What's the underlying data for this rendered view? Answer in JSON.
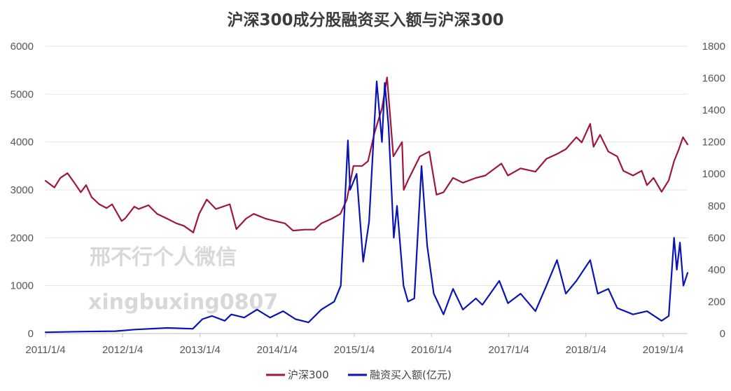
{
  "watermark": {
    "line1": "邢不行个人微信",
    "line2": "xingbuxing0807"
  },
  "chart_data": {
    "type": "line",
    "title": "沪深300成分股融资买入额与沪深300",
    "x_ticks": [
      "2011/1/4",
      "2012/1/4",
      "2013/1/4",
      "2014/1/4",
      "2015/1/4",
      "2016/1/4",
      "2017/1/4",
      "2018/1/4",
      "2019/1/4"
    ],
    "x_range": [
      "2011/1/4",
      "2019/4/30"
    ],
    "y_left": {
      "ylim": [
        0,
        6000
      ],
      "ticks": [
        0,
        1000,
        2000,
        3000,
        4000,
        5000,
        6000
      ]
    },
    "y_right": {
      "ylim": [
        0,
        1800
      ],
      "ticks": [
        0,
        200,
        400,
        600,
        800,
        1000,
        1200,
        1400,
        1600,
        1800
      ]
    },
    "grid": "horizontal",
    "legend_position": "bottom",
    "series": [
      {
        "name": "沪深300",
        "axis": "left",
        "color": "#a0153e",
        "points": [
          [
            "2011/1/4",
            3190
          ],
          [
            "2011/2/15",
            3050
          ],
          [
            "2011/3/15",
            3250
          ],
          [
            "2011/4/18",
            3350
          ],
          [
            "2011/5/20",
            3150
          ],
          [
            "2011/6/20",
            2950
          ],
          [
            "2011/7/15",
            3100
          ],
          [
            "2011/8/10",
            2850
          ],
          [
            "2011/9/15",
            2700
          ],
          [
            "2011/10/20",
            2620
          ],
          [
            "2011/11/15",
            2700
          ],
          [
            "2011/12/30",
            2350
          ],
          [
            "2012/1/15",
            2400
          ],
          [
            "2012/2/28",
            2650
          ],
          [
            "2012/3/20",
            2600
          ],
          [
            "2012/5/5",
            2680
          ],
          [
            "2012/6/15",
            2500
          ],
          [
            "2012/8/1",
            2400
          ],
          [
            "2012/9/15",
            2300
          ],
          [
            "2012/10/20",
            2250
          ],
          [
            "2012/12/3",
            2110
          ],
          [
            "2012/12/31",
            2500
          ],
          [
            "2013/2/5",
            2800
          ],
          [
            "2013/3/20",
            2600
          ],
          [
            "2013/5/25",
            2700
          ],
          [
            "2013/6/25",
            2180
          ],
          [
            "2013/8/10",
            2400
          ],
          [
            "2013/9/15",
            2500
          ],
          [
            "2013/11/10",
            2400
          ],
          [
            "2013/12/25",
            2350
          ],
          [
            "2014/2/10",
            2300
          ],
          [
            "2014/3/20",
            2150
          ],
          [
            "2014/5/15",
            2170
          ],
          [
            "2014/6/30",
            2170
          ],
          [
            "2014/8/1",
            2300
          ],
          [
            "2014/9/20",
            2400
          ],
          [
            "2014/10/30",
            2500
          ],
          [
            "2014/11/30",
            2800
          ],
          [
            "2014/12/31",
            3500
          ],
          [
            "2015/2/10",
            3500
          ],
          [
            "2015/3/10",
            3600
          ],
          [
            "2015/4/10",
            4200
          ],
          [
            "2015/5/15",
            4700
          ],
          [
            "2015/6/8",
            5350
          ],
          [
            "2015/7/8",
            3700
          ],
          [
            "2015/8/18",
            4000
          ],
          [
            "2015/8/26",
            3000
          ],
          [
            "2015/9/15",
            3200
          ],
          [
            "2015/11/10",
            3700
          ],
          [
            "2015/12/25",
            3800
          ],
          [
            "2016/1/28",
            2900
          ],
          [
            "2016/3/1",
            2950
          ],
          [
            "2016/4/15",
            3250
          ],
          [
            "2016/6/1",
            3150
          ],
          [
            "2016/8/1",
            3250
          ],
          [
            "2016/9/15",
            3300
          ],
          [
            "2016/11/30",
            3550
          ],
          [
            "2016/12/31",
            3300
          ],
          [
            "2017/3/1",
            3450
          ],
          [
            "2017/5/10",
            3380
          ],
          [
            "2017/7/1",
            3650
          ],
          [
            "2017/8/20",
            3750
          ],
          [
            "2017/10/1",
            3850
          ],
          [
            "2017/11/20",
            4100
          ],
          [
            "2017/12/15",
            3990
          ],
          [
            "2018/1/24",
            4380
          ],
          [
            "2018/2/9",
            3900
          ],
          [
            "2018/3/12",
            4150
          ],
          [
            "2018/4/20",
            3800
          ],
          [
            "2018/6/1",
            3700
          ],
          [
            "2018/6/30",
            3400
          ],
          [
            "2018/8/15",
            3300
          ],
          [
            "2018/9/25",
            3400
          ],
          [
            "2018/10/20",
            3100
          ],
          [
            "2018/11/20",
            3250
          ],
          [
            "2018/12/28",
            2960
          ],
          [
            "2019/1/31",
            3200
          ],
          [
            "2019/2/25",
            3600
          ],
          [
            "2019/3/20",
            3850
          ],
          [
            "2019/4/8",
            4100
          ],
          [
            "2019/4/30",
            3950
          ]
        ]
      },
      {
        "name": "融资买入额(亿元)",
        "axis": "right",
        "color": "#0a14b4",
        "points": [
          [
            "2011/1/4",
            8
          ],
          [
            "2011/6/1",
            12
          ],
          [
            "2011/12/1",
            15
          ],
          [
            "2012/3/1",
            25
          ],
          [
            "2012/8/1",
            35
          ],
          [
            "2012/12/1",
            30
          ],
          [
            "2013/1/15",
            90
          ],
          [
            "2013/3/1",
            110
          ],
          [
            "2013/5/1",
            80
          ],
          [
            "2013/6/1",
            120
          ],
          [
            "2013/8/1",
            100
          ],
          [
            "2013/10/1",
            150
          ],
          [
            "2013/12/1",
            100
          ],
          [
            "2014/2/1",
            140
          ],
          [
            "2014/4/1",
            90
          ],
          [
            "2014/6/1",
            70
          ],
          [
            "2014/8/1",
            150
          ],
          [
            "2014/10/1",
            200
          ],
          [
            "2014/11/1",
            300
          ],
          [
            "2014/12/5",
            1210
          ],
          [
            "2014/12/15",
            900
          ],
          [
            "2015/1/15",
            1000
          ],
          [
            "2015/2/15",
            450
          ],
          [
            "2015/3/15",
            700
          ],
          [
            "2015/4/20",
            1580
          ],
          [
            "2015/5/15",
            1200
          ],
          [
            "2015/5/28",
            1570
          ],
          [
            "2015/6/15",
            1300
          ],
          [
            "2015/7/10",
            600
          ],
          [
            "2015/7/25",
            800
          ],
          [
            "2015/8/25",
            300
          ],
          [
            "2015/9/15",
            200
          ],
          [
            "2015/10/15",
            220
          ],
          [
            "2015/11/18",
            1050
          ],
          [
            "2015/12/15",
            550
          ],
          [
            "2016/1/15",
            250
          ],
          [
            "2016/3/1",
            120
          ],
          [
            "2016/4/15",
            280
          ],
          [
            "2016/6/1",
            150
          ],
          [
            "2016/8/1",
            220
          ],
          [
            "2016/9/1",
            180
          ],
          [
            "2016/11/20",
            330
          ],
          [
            "2016/12/31",
            190
          ],
          [
            "2017/3/1",
            250
          ],
          [
            "2017/5/10",
            140
          ],
          [
            "2017/7/1",
            300
          ],
          [
            "2017/8/20",
            460
          ],
          [
            "2017/10/1",
            250
          ],
          [
            "2017/11/20",
            330
          ],
          [
            "2018/1/24",
            460
          ],
          [
            "2018/3/1",
            250
          ],
          [
            "2018/4/20",
            280
          ],
          [
            "2018/6/1",
            160
          ],
          [
            "2018/8/15",
            120
          ],
          [
            "2018/10/20",
            140
          ],
          [
            "2018/12/28",
            80
          ],
          [
            "2019/1/31",
            110
          ],
          [
            "2019/2/25",
            600
          ],
          [
            "2019/3/10",
            400
          ],
          [
            "2019/3/25",
            570
          ],
          [
            "2019/4/10",
            300
          ],
          [
            "2019/4/30",
            380
          ]
        ]
      }
    ]
  }
}
